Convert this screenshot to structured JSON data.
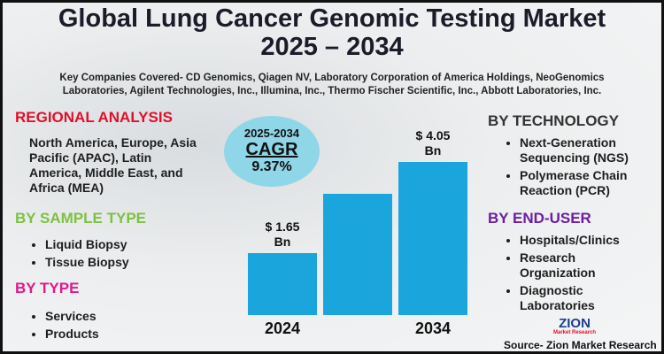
{
  "title": "Global Lung Cancer Genomic Testing Market 2025 – 2034",
  "subtitle": "Key Companies Covered- CD Genomics, Qiagen NV, Laboratory Corporation of America Holdings, NeoGenomics Laboratories, Agilent Technologies, Inc., Illumina, Inc., Thermo Fischer Scientific, Inc., Abbott Laboratories, Inc.",
  "regional_analysis": {
    "heading": "REGIONAL ANALYSIS",
    "text": "North America, Europe, Asia Pacific (APAC), Latin America, Middle East, and Africa (MEA)"
  },
  "sample_type": {
    "heading": "BY SAMPLE TYPE",
    "items": [
      "Liquid Biopsy",
      "Tissue Biopsy"
    ]
  },
  "type": {
    "heading": "BY TYPE",
    "items": [
      "Services",
      "Products"
    ]
  },
  "technology": {
    "heading": "BY TECHNOLOGY",
    "items": [
      "Next-Generation Sequencing (NGS)",
      "Polymerase Chain Reaction (PCR)"
    ]
  },
  "end_user": {
    "heading": "BY END-USER",
    "items": [
      "Hospitals/Clinics",
      "Research Organization",
      "Diagnostic Laboratories"
    ]
  },
  "cagr": {
    "period": "2025-2034",
    "label": "CAGR",
    "value": "9.37%"
  },
  "chart_data": {
    "type": "bar",
    "categories": [
      "2024",
      null,
      "2034"
    ],
    "values": [
      1.65,
      3.2,
      4.05
    ],
    "value_labels": [
      "$ 1.65 Bn",
      null,
      "$ 4.05 Bn"
    ],
    "color": "#1aa5dc"
  },
  "logo": {
    "name": "ZION",
    "tagline": "Market Research"
  },
  "source": "Source- Zion Market Research"
}
